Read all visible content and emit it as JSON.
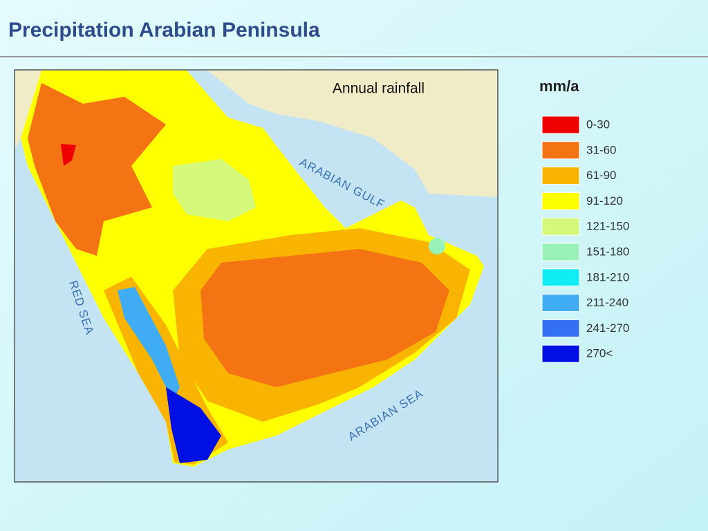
{
  "header": {
    "title": "Precipitation Arabian Peninsula"
  },
  "map": {
    "caption": "Annual rainfall",
    "water_labels": [
      "RED SEA",
      "ARABIAN GULF",
      "ARABIAN SEA"
    ]
  },
  "legend": {
    "title": "mm/a",
    "items": [
      {
        "label": "0-30",
        "color": "#ee0000"
      },
      {
        "label": "31-60",
        "color": "#f47414"
      },
      {
        "label": "61-90",
        "color": "#f8b400"
      },
      {
        "label": "91-120",
        "color": "#ffff00"
      },
      {
        "label": "121-150",
        "color": "#d4f87a"
      },
      {
        "label": "151-180",
        "color": "#98f2b8"
      },
      {
        "label": "181-210",
        "color": "#10ecf4"
      },
      {
        "label": "211-240",
        "color": "#40acf4"
      },
      {
        "label": "241-270",
        "color": "#3470f4"
      },
      {
        "label": "270<",
        "color": "#0010e4"
      }
    ]
  }
}
